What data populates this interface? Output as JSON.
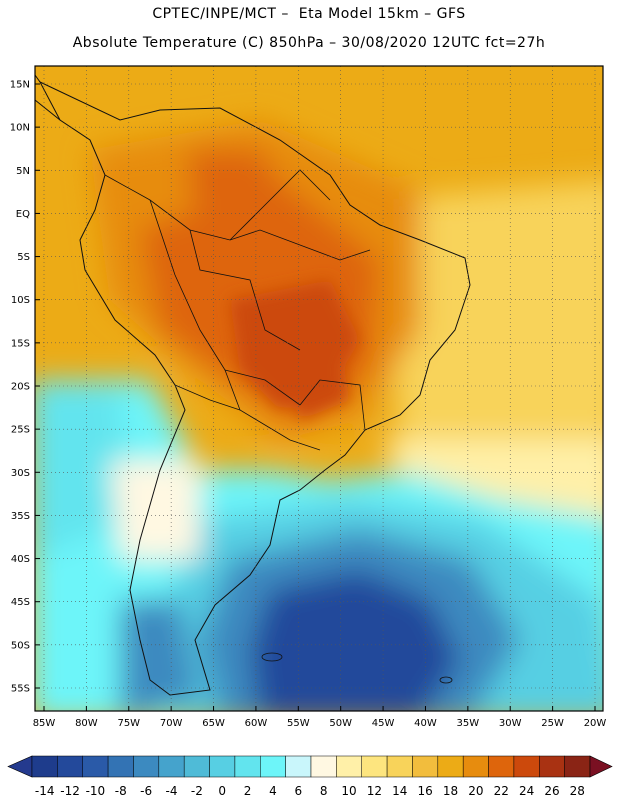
{
  "title_line1": "CPTEC/INPE/MCT –  Eta Model 15km – GFS",
  "title_line2": "Absolute Temperature (C) 850hPa – 30/08/2020 12UTC fct=27h",
  "lat_labels": [
    "15N",
    "10N",
    "5N",
    "EQ",
    "5S",
    "10S",
    "15S",
    "20S",
    "25S",
    "30S",
    "35S",
    "40S",
    "45S",
    "50S",
    "55S"
  ],
  "lat_values": [
    15,
    10,
    5,
    0,
    -5,
    -10,
    -15,
    -20,
    -25,
    -30,
    -35,
    -40,
    -45,
    -50,
    -55
  ],
  "lon_labels": [
    "85W",
    "80W",
    "75W",
    "70W",
    "65W",
    "60W",
    "55W",
    "50W",
    "45W",
    "40W",
    "35W",
    "30W",
    "25W",
    "20W"
  ],
  "lon_values": [
    -85,
    -80,
    -75,
    -70,
    -65,
    -60,
    -55,
    -50,
    -45,
    -40,
    -35,
    -30,
    -25,
    -20
  ],
  "colorbar": {
    "labels": [
      "-14",
      "-12",
      "-10",
      "-8",
      "-6",
      "-4",
      "-2",
      "0",
      "2",
      "4",
      "6",
      "8",
      "10",
      "12",
      "14",
      "16",
      "18",
      "20",
      "22",
      "24",
      "26",
      "28"
    ],
    "colors": [
      "#1e3c8c",
      "#23499b",
      "#2a5aa8",
      "#3373b4",
      "#3c8ac0",
      "#45a3cc",
      "#4fbbd7",
      "#57cfe3",
      "#62e4ee",
      "#6df5f9",
      "#c9f6fb",
      "#fff8e2",
      "#fff0a8",
      "#fde57f",
      "#f8d35a",
      "#f2bd3d",
      "#ecab16",
      "#e78c0e",
      "#de650c",
      "#cc490c",
      "#a93212",
      "#8a2415"
    ],
    "under_color": "#243a8e",
    "over_color": "#7a1022"
  }
}
